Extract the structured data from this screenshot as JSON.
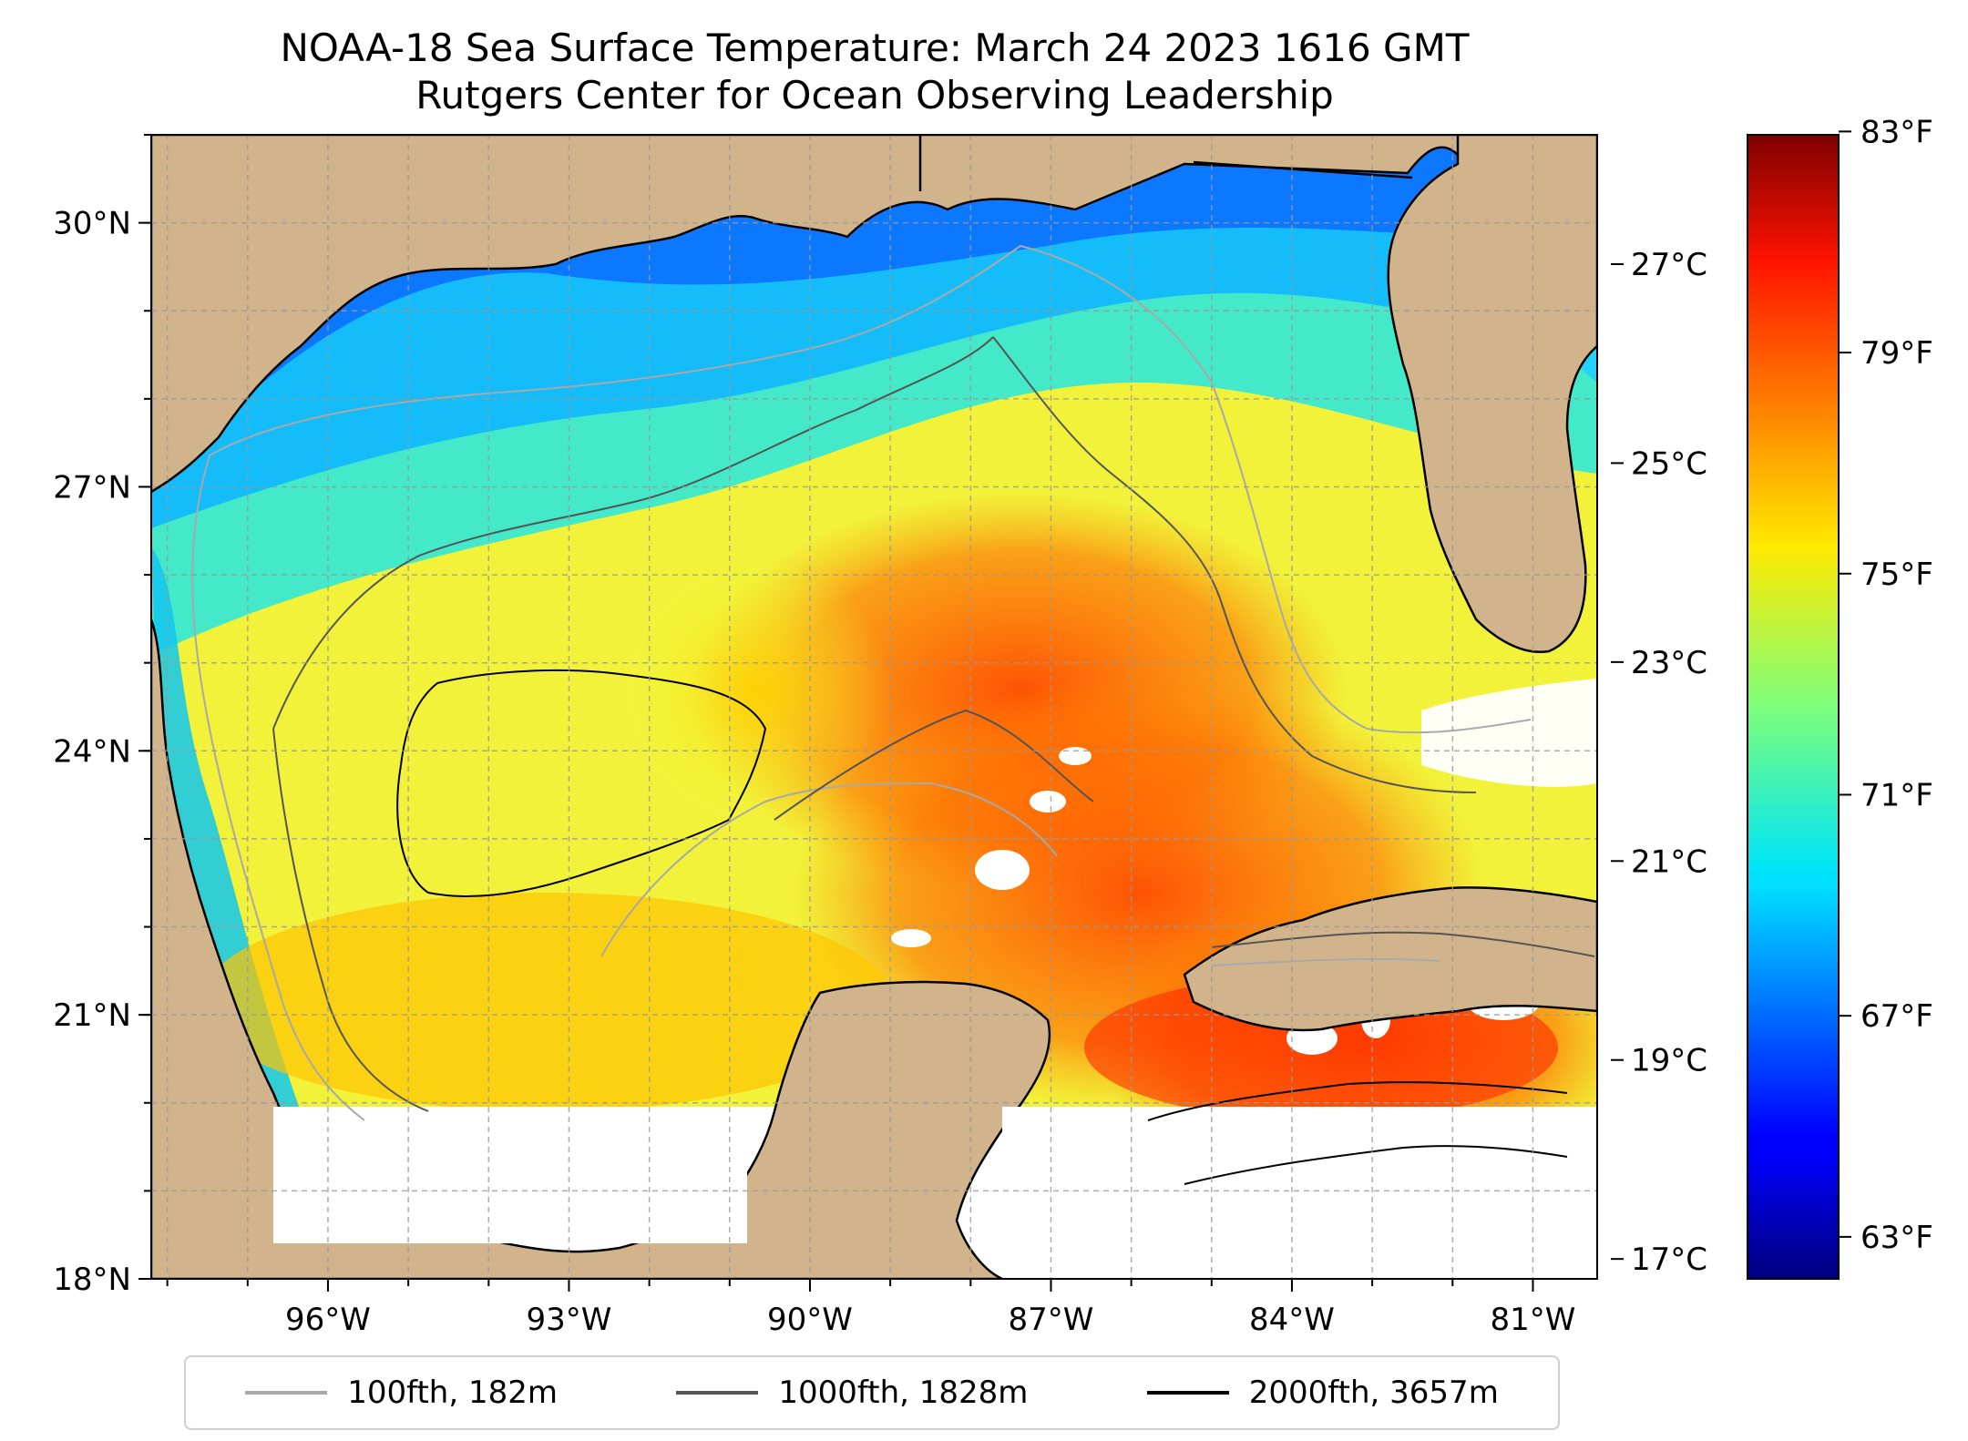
{
  "title_line1": "NOAA-18 Sea Surface Temperature: March 24 2023 1616 GMT",
  "title_line2": "Rutgers Center for Ocean Observing Leadership",
  "map": {
    "lon_range": [
      -98.2,
      -80.2
    ],
    "lat_range": [
      18.0,
      31.0
    ],
    "lat_ticks": [
      {
        "value": 30,
        "label": "30°N"
      },
      {
        "value": 27,
        "label": "27°N"
      },
      {
        "value": 24,
        "label": "24°N"
      },
      {
        "value": 21,
        "label": "21°N"
      },
      {
        "value": 18,
        "label": "18°N"
      }
    ],
    "lon_ticks": [
      {
        "value": -96,
        "label": "96°W"
      },
      {
        "value": -93,
        "label": "93°W"
      },
      {
        "value": -90,
        "label": "90°W"
      },
      {
        "value": -87,
        "label": "87°W"
      },
      {
        "value": -84,
        "label": "84°W"
      },
      {
        "value": -81,
        "label": "81°W"
      }
    ],
    "land_color": "#d2b48c",
    "gridlines": true
  },
  "colorbar": {
    "colormap": "jet",
    "celsius_range": [
      16.8,
      28.3
    ],
    "celsius_ticks": [
      {
        "value": 27,
        "label": "27°C"
      },
      {
        "value": 25,
        "label": "25°C"
      },
      {
        "value": 23,
        "label": "23°C"
      },
      {
        "value": 21,
        "label": "21°C"
      },
      {
        "value": 19,
        "label": "19°C"
      },
      {
        "value": 17,
        "label": "17°C"
      }
    ],
    "fahrenheit_ticks": [
      {
        "value": 83,
        "label": "83°F"
      },
      {
        "value": 79,
        "label": "79°F"
      },
      {
        "value": 75,
        "label": "75°F"
      },
      {
        "value": 71,
        "label": "71°F"
      },
      {
        "value": 67,
        "label": "67°F"
      },
      {
        "value": 63,
        "label": "63°F"
      }
    ]
  },
  "legend": [
    {
      "label": "100fth, 182m",
      "color": "#a9a9a9"
    },
    {
      "label": "1000fth, 1828m",
      "color": "#555555"
    },
    {
      "label": "2000fth, 3657m",
      "color": "#000000"
    }
  ]
}
